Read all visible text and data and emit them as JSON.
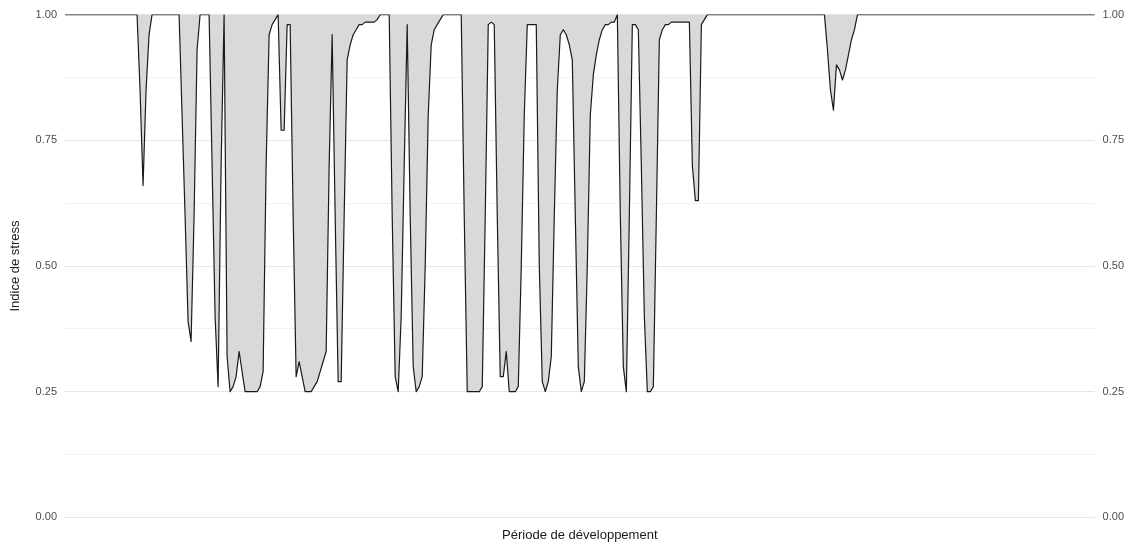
{
  "chart_data": {
    "type": "area",
    "xlabel": "Période de développement",
    "ylabel": "Indice de stress",
    "categories": [
      null,
      null,
      null,
      null,
      null,
      null,
      null,
      null,
      null,
      null,
      null,
      null,
      null,
      null,
      null,
      null,
      null,
      null,
      null,
      null,
      null,
      null,
      null,
      null,
      null,
      null,
      null,
      null,
      null,
      null,
      null,
      null,
      null,
      null,
      null,
      null,
      null,
      null,
      null,
      null,
      null,
      null,
      null,
      null,
      null,
      null,
      null,
      null,
      null,
      null,
      null,
      null,
      null,
      null,
      null,
      null,
      null,
      null,
      null,
      null,
      null,
      null,
      null,
      null,
      null,
      null,
      null,
      null,
      null,
      null,
      null,
      null,
      null,
      null,
      null,
      null,
      null,
      null,
      null,
      null,
      null,
      null,
      null,
      null,
      null,
      null,
      null,
      null,
      null,
      null,
      null,
      null,
      null,
      null,
      null,
      null,
      null,
      null,
      null,
      null,
      null,
      null,
      null,
      null,
      null,
      null,
      null,
      null,
      null,
      null,
      null,
      null,
      null,
      null,
      null,
      null,
      null,
      null,
      null,
      null,
      null,
      null,
      null,
      null,
      null,
      null,
      null,
      null,
      null,
      null,
      null,
      null,
      null,
      null,
      null,
      null,
      null,
      null,
      null,
      null,
      null,
      null,
      null,
      null,
      null,
      null,
      null,
      null,
      null,
      null,
      null,
      null,
      null,
      null,
      null,
      null,
      null,
      null,
      null,
      null,
      null,
      null,
      null,
      null,
      null,
      null,
      null,
      null,
      null,
      null,
      null,
      null,
      null,
      null,
      null,
      null,
      null,
      null,
      null,
      null,
      null,
      null,
      null,
      null,
      null,
      null,
      null,
      null,
      null,
      null,
      null,
      null,
      null,
      null,
      null,
      null,
      null,
      null,
      null,
      null,
      null,
      null,
      null,
      null,
      null,
      null,
      null,
      null,
      null,
      null,
      null,
      null,
      null,
      null,
      null,
      null,
      null,
      null,
      null,
      null,
      null,
      null,
      null,
      null,
      null,
      null,
      null,
      null,
      null,
      null,
      null,
      null,
      null,
      null,
      null,
      null,
      null,
      null,
      null,
      null,
      null,
      null,
      null,
      null,
      null,
      null,
      null,
      null,
      null,
      null,
      null,
      null,
      null,
      null,
      null,
      null,
      null,
      null,
      null,
      null,
      null,
      null,
      null,
      null,
      null,
      null,
      null,
      null,
      null,
      null,
      null,
      null,
      null,
      null,
      null,
      null,
      null,
      null,
      null,
      null,
      null,
      null,
      null,
      null,
      null,
      null,
      null,
      null,
      null,
      null,
      null,
      null,
      null,
      null,
      null,
      null,
      null,
      null,
      null,
      null,
      null,
      null,
      null,
      null,
      null,
      null,
      null,
      null,
      null,
      null,
      null,
      null,
      null,
      null,
      null,
      null,
      null,
      null,
      null,
      null,
      null,
      null,
      null,
      null,
      null,
      null,
      null,
      null,
      null,
      null,
      null,
      null,
      null,
      null,
      null,
      null,
      null,
      null,
      null,
      null,
      null,
      null,
      null,
      null
    ],
    "series": [
      {
        "color": "#d9d9d9",
        "values": [
          1,
          1,
          1,
          1,
          1,
          1,
          1,
          1,
          1,
          1,
          1,
          1,
          1,
          1,
          1,
          1,
          1,
          1,
          1,
          1,
          1,
          1,
          1,
          1,
          1,
          0.85,
          0.66,
          0.85,
          0.96,
          1,
          1,
          1,
          1,
          1,
          1,
          1,
          1,
          1,
          1,
          0.8,
          0.6,
          0.39,
          0.35,
          0.6,
          0.93,
          1,
          1,
          1,
          1,
          0.7,
          0.4,
          0.26,
          0.7,
          1,
          0.32,
          0.25,
          0.26,
          0.28,
          0.33,
          0.29,
          0.25,
          0.25,
          0.25,
          0.25,
          0.25,
          0.26,
          0.29,
          0.7,
          0.96,
          0.98,
          0.99,
          1,
          0.77,
          0.77,
          0.98,
          0.98,
          0.6,
          0.28,
          0.31,
          0.28,
          0.25,
          0.25,
          0.25,
          0.26,
          0.27,
          0.29,
          0.31,
          0.33,
          0.7,
          0.96,
          0.6,
          0.27,
          0.27,
          0.6,
          0.91,
          0.94,
          0.96,
          0.97,
          0.98,
          0.98,
          0.985,
          0.985,
          0.985,
          0.985,
          0.99,
          1,
          1,
          1,
          1,
          0.6,
          0.28,
          0.25,
          0.4,
          0.7,
          0.98,
          0.6,
          0.3,
          0.25,
          0.26,
          0.28,
          0.5,
          0.8,
          0.94,
          0.97,
          0.98,
          0.99,
          1,
          1,
          1,
          1,
          1,
          1,
          1,
          0.6,
          0.25,
          0.25,
          0.25,
          0.25,
          0.25,
          0.26,
          0.6,
          0.98,
          0.985,
          0.98,
          0.6,
          0.28,
          0.28,
          0.33,
          0.25,
          0.25,
          0.25,
          0.26,
          0.5,
          0.8,
          0.98,
          0.98,
          0.98,
          0.98,
          0.5,
          0.27,
          0.25,
          0.27,
          0.32,
          0.6,
          0.85,
          0.96,
          0.97,
          0.96,
          0.94,
          0.91,
          0.6,
          0.3,
          0.25,
          0.27,
          0.5,
          0.8,
          0.88,
          0.92,
          0.95,
          0.97,
          0.98,
          0.98,
          0.985,
          0.985,
          1,
          0.6,
          0.3,
          0.25,
          0.6,
          0.98,
          0.98,
          0.97,
          0.7,
          0.4,
          0.25,
          0.25,
          0.26,
          0.6,
          0.95,
          0.97,
          0.98,
          0.98,
          0.985,
          0.985,
          0.985,
          0.985,
          0.985,
          0.985,
          0.985,
          0.7,
          0.63,
          0.63,
          0.98,
          0.99,
          1,
          1,
          1,
          1,
          1,
          1,
          1,
          1,
          1,
          1,
          1,
          1,
          1,
          1,
          1,
          1,
          1,
          1,
          1,
          1,
          1,
          1,
          1,
          1,
          1,
          1,
          1,
          1,
          1,
          1,
          1,
          1,
          1,
          1,
          1,
          1,
          1,
          1,
          1,
          1,
          0.93,
          0.85,
          0.81,
          0.9,
          0.89,
          0.87,
          0.89,
          0.92,
          0.95,
          0.97,
          1,
          1,
          1,
          1,
          1,
          1,
          1,
          1,
          1,
          1,
          1,
          1,
          1,
          1,
          1,
          1,
          1,
          1,
          1,
          1,
          1,
          1,
          1,
          1,
          1,
          1,
          1,
          1,
          1,
          1,
          1,
          1,
          1,
          1,
          1,
          1,
          1,
          1,
          1,
          1,
          1,
          1,
          1,
          1,
          1,
          1,
          1,
          1,
          1,
          1,
          1,
          1,
          1,
          1,
          1,
          1,
          1,
          1,
          1,
          1,
          1,
          1,
          1,
          1,
          1,
          1,
          1,
          1,
          1,
          1,
          1,
          1,
          1,
          1,
          1,
          1,
          1,
          1,
          1,
          1
        ]
      }
    ],
    "ylim": [
      0,
      1
    ],
    "yticks": [
      {
        "value": 0,
        "label": "0.00"
      },
      {
        "value": 0.125,
        "label": null
      },
      {
        "value": 0.25,
        "label": "0.25"
      },
      {
        "value": 0.375,
        "label": null
      },
      {
        "value": 0.5,
        "label": "0.50"
      },
      {
        "value": 0.625,
        "label": null
      },
      {
        "value": 0.75,
        "label": "0.75"
      },
      {
        "value": 0.875,
        "label": null
      },
      {
        "value": 1,
        "label": "1.00"
      }
    ],
    "y2lim": [
      0,
      1
    ],
    "y2ticks": [
      {
        "value": 0,
        "label": "0.00"
      },
      {
        "value": 0.125,
        "label": null
      },
      {
        "value": 0.25,
        "label": "0.25"
      },
      {
        "value": 0.375,
        "label": null
      },
      {
        "value": 0.5,
        "label": "0.50"
      },
      {
        "value": 0.625,
        "label": null
      },
      {
        "value": 0.75,
        "label": "0.75"
      },
      {
        "value": 0.875,
        "label": null
      },
      {
        "value": 1,
        "label": "1.00"
      }
    ],
    "grid": "y",
    "legend": false,
    "marker": "none"
  }
}
